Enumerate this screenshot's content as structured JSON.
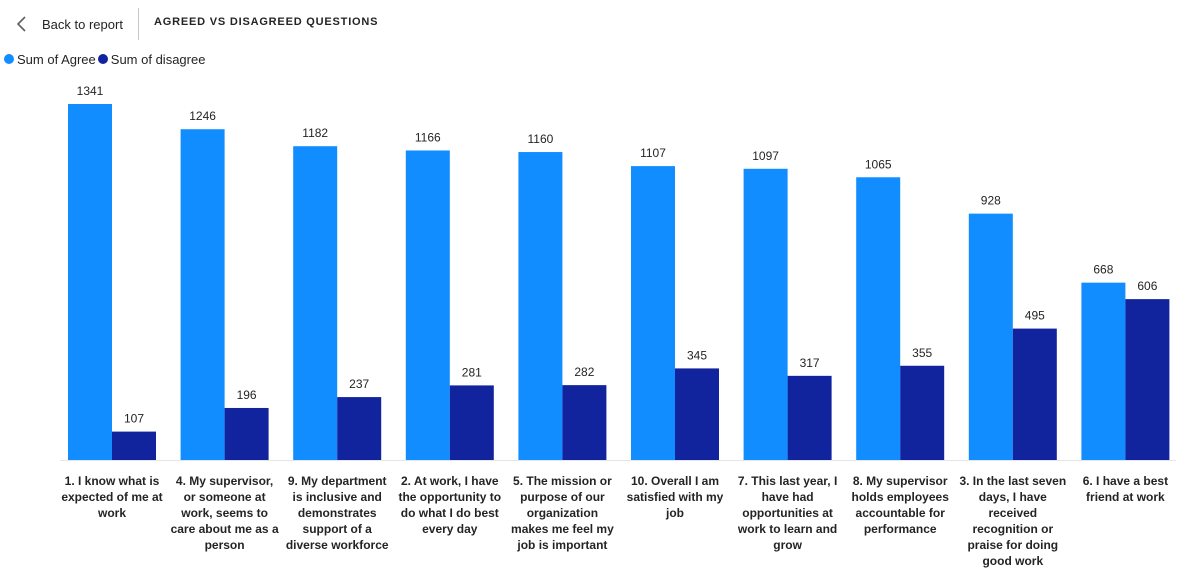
{
  "header": {
    "back_label": "Back to report",
    "title": "AGREED VS DISAGREED QUESTIONS"
  },
  "colors": {
    "agree": "#118DFF",
    "disagree": "#12239E"
  },
  "chart_data": {
    "type": "bar",
    "title": "",
    "xlabel": "",
    "ylabel": "",
    "legend_position": "top-left",
    "grid": false,
    "ylim": [
      0,
      1341
    ],
    "categories": [
      "1. I know what is expected of me at work",
      "4. My supervisor, or someone at work, seems to care about me as a person",
      "9. My department is inclusive and demonstrates support of a diverse workforce",
      "2. At work, I have the opportunity to do what I do best every day",
      "5. The mission or purpose of our organization makes me feel my job is important",
      "10. Overall I am satisfied with my job",
      "7. This last year, I have had opportunities at work to learn and grow",
      "8. My supervisor holds employees accountable for performance",
      "3. In the last seven days, I have received recognition or praise for doing good work",
      "6. I have a best friend at work"
    ],
    "series": [
      {
        "name": "Sum of Agree",
        "values": [
          1341,
          1246,
          1182,
          1166,
          1160,
          1107,
          1097,
          1065,
          928,
          668
        ]
      },
      {
        "name": "Sum of disagree",
        "values": [
          107,
          196,
          237,
          281,
          282,
          345,
          317,
          355,
          495,
          606
        ]
      }
    ]
  }
}
